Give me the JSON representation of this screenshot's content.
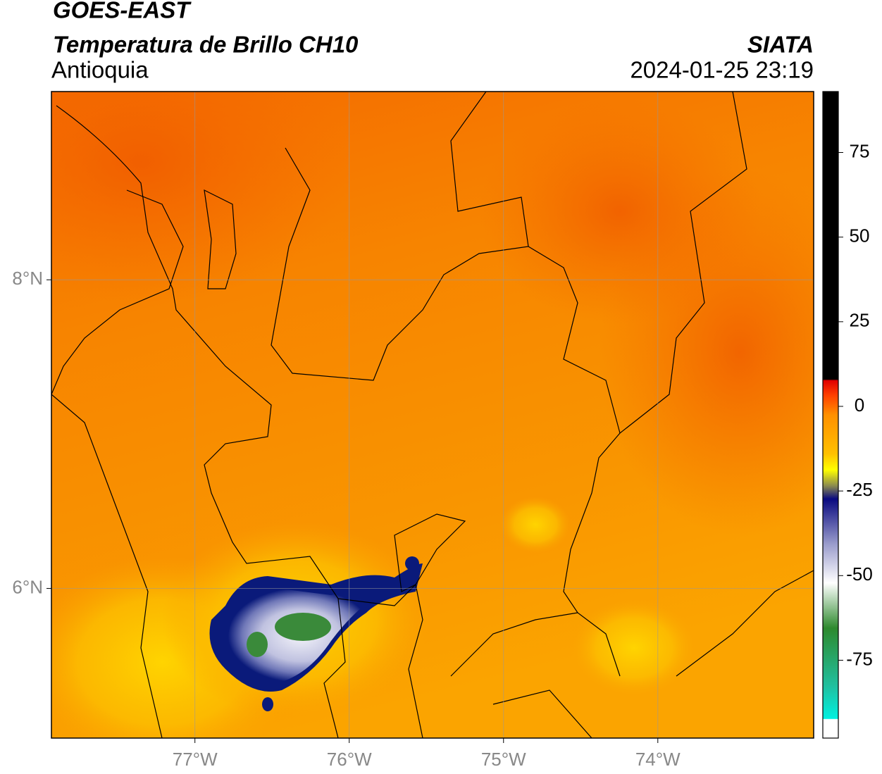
{
  "header": {
    "title": "GOES-EAST",
    "subtitle": "Temperatura de Brillo CH10",
    "region": "Antioquia",
    "source": "SIATA",
    "timestamp": "2024-01-25 23:19"
  },
  "map": {
    "xlim": [
      -77.93,
      -72.99
    ],
    "ylim": [
      5.03,
      9.22
    ],
    "xticks": [
      {
        "value": -77,
        "label": "77°W"
      },
      {
        "value": -76,
        "label": "76°W"
      },
      {
        "value": -75,
        "label": "75°W"
      },
      {
        "value": -74,
        "label": "74°W"
      }
    ],
    "yticks": [
      {
        "value": 8,
        "label": "8°N"
      },
      {
        "value": 6,
        "label": "6°N"
      }
    ],
    "grid": true
  },
  "colorbar": {
    "lim": [
      -98,
      93
    ],
    "ticks": [
      75,
      50,
      25,
      0,
      -25,
      -50,
      -75
    ]
  }
}
